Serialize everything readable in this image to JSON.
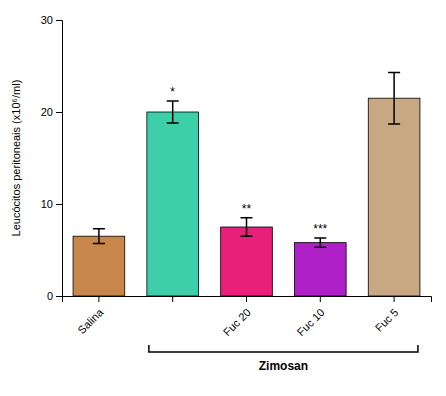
{
  "chart_data": {
    "type": "bar",
    "categories": [
      "Salina",
      null,
      "Fuc 20",
      "Fuc 10",
      "Fuc 5"
    ],
    "values": [
      6.5,
      20.0,
      7.5,
      5.8,
      21.5
    ],
    "errors": [
      0.8,
      1.2,
      1.0,
      0.5,
      2.8
    ],
    "colors": [
      "#C8874A",
      "#3DCFAA",
      "#E8207A",
      "#B020C8",
      "#C8A882"
    ],
    "significance": [
      null,
      "*",
      "**",
      "***",
      null
    ],
    "ylabel": "Leucócitos peritoneais (x10⁶/ml)",
    "ylim": [
      0,
      30
    ],
    "yticks": [
      0,
      10,
      20,
      30
    ],
    "annotations": [
      {
        "text": "Zimosan",
        "from": 1,
        "to": 4
      }
    ],
    "grid": false
  }
}
